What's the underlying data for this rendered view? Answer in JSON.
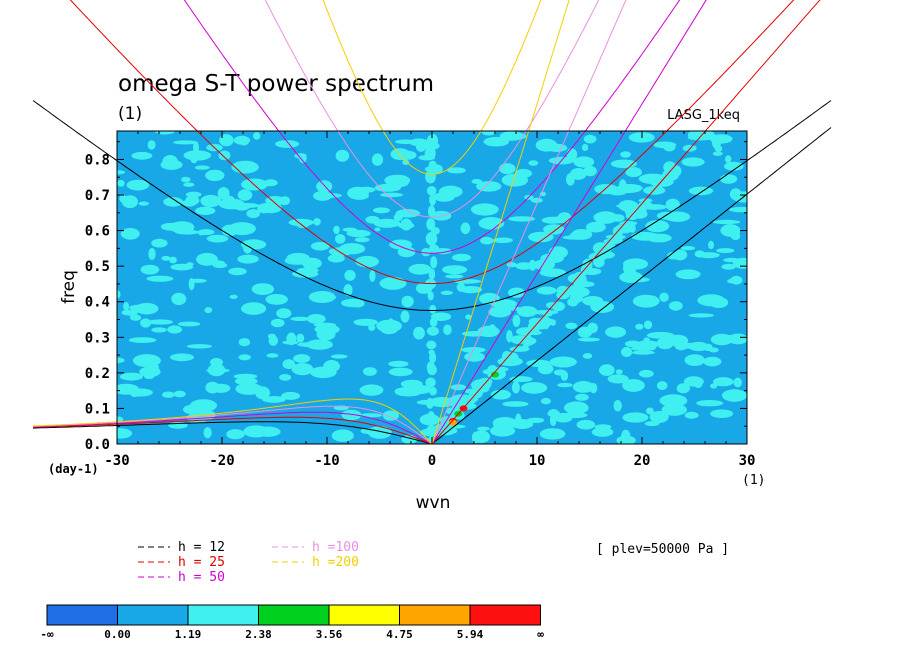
{
  "chart_data": {
    "type": "heatmap",
    "title": "omega S-T power spectrum",
    "subtitle": "(1)",
    "model": "LASG_1keq",
    "xlabel": "wvn",
    "ylabel": "freq",
    "x_unit": "(1)",
    "y_unit": "(day-1)",
    "xlim": [
      -30,
      30
    ],
    "ylim": [
      0,
      0.88
    ],
    "xticks": [
      -30,
      -20,
      -10,
      0,
      10,
      20,
      30
    ],
    "yticks": [
      0.0,
      0.1,
      0.2,
      0.3,
      0.4,
      0.5,
      0.6,
      0.7,
      0.8
    ],
    "xtick_labels": [
      "-30",
      "-20",
      "-10",
      "0",
      "10",
      "20",
      "30"
    ],
    "ytick_labels": [
      "0.0",
      "0.1",
      "0.2",
      "0.3",
      "0.4",
      "0.5",
      "0.6",
      "0.7",
      "0.8"
    ],
    "level_note": "[ plev=50000 Pa ]",
    "colorbar": {
      "labels": [
        "-∞",
        "0.00",
        "1.19",
        "2.38",
        "3.56",
        "4.75",
        "5.94",
        "∞"
      ],
      "colors": [
        "#1f6ee6",
        "#18a8e8",
        "#40f0f0",
        "#00d020",
        "#ffff00",
        "#ffa500",
        "#ff1010"
      ]
    },
    "background_color": "#18a8e8",
    "dispersion_curves": [
      {
        "label": "h = 12",
        "h": 12,
        "color": "#000000"
      },
      {
        "label": "h = 25",
        "h": 25,
        "color": "#e00000"
      },
      {
        "label": "h = 50",
        "h": 50,
        "color": "#d000d0"
      },
      {
        "label": "h =100",
        "h": 100,
        "color": "#e890e0"
      },
      {
        "label": "h =200",
        "h": 200,
        "color": "#f0d000"
      }
    ],
    "hotspots": [
      {
        "x": 2.0,
        "y": 0.065,
        "level": 6
      },
      {
        "x": 3.0,
        "y": 0.1,
        "level": 6
      },
      {
        "x": 2.5,
        "y": 0.085,
        "level": 3
      },
      {
        "x": 6.0,
        "y": 0.195,
        "level": 3
      },
      {
        "x": 2.0,
        "y": 0.06,
        "level": 5
      }
    ]
  }
}
